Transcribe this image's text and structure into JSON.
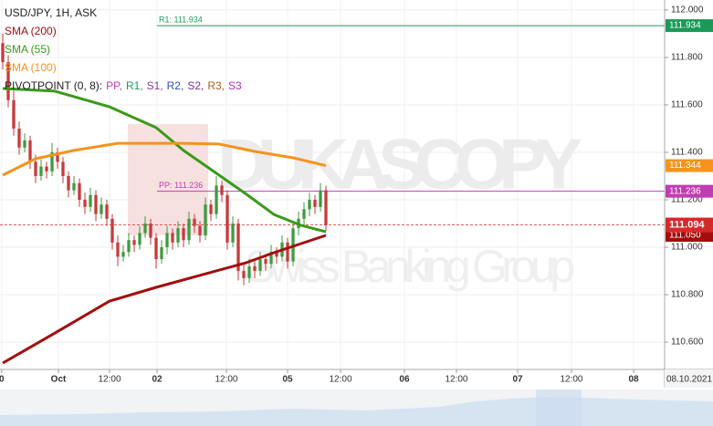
{
  "chart_data": {
    "type": "candlestick",
    "title": "USD/JPY, 1H, ASK",
    "xlim": [
      -0.5,
      120.83
    ],
    "ylim": [
      110.485,
      112.042
    ],
    "xticks": [
      {
        "value": -0.2,
        "label": "0"
      },
      {
        "value": 10.17,
        "label": "Oct"
      },
      {
        "value": 19.5,
        "label": "12:00"
      },
      {
        "value": 28.17,
        "label": "02"
      },
      {
        "value": 40.83,
        "label": "12:00"
      },
      {
        "value": 52,
        "label": "05"
      },
      {
        "value": 61.67,
        "label": "12:00"
      },
      {
        "value": 73.33,
        "label": "06"
      },
      {
        "value": 82.83,
        "label": "12:00"
      },
      {
        "value": 94,
        "label": "07"
      },
      {
        "value": 103.83,
        "label": "12:00"
      },
      {
        "value": 115.17,
        "label": "08"
      }
    ],
    "date_stamp": "08.10.2021",
    "yticks": [
      {
        "value": 110.6,
        "label": "110.600"
      },
      {
        "value": 110.8,
        "label": "110.800"
      },
      {
        "value": 111,
        "label": "111.000"
      },
      {
        "value": 111.2,
        "label": "111.200"
      },
      {
        "value": 111.4,
        "label": "111.400"
      },
      {
        "value": 111.6,
        "label": "111.600"
      },
      {
        "value": 111.8,
        "label": "111.800"
      },
      {
        "value": 112,
        "label": "112.000"
      }
    ],
    "grid": true,
    "up_color": "#3f9b3f",
    "down_color": "#c63b3b",
    "x": [
      0,
      1,
      2,
      3,
      4,
      5,
      6,
      7,
      8,
      9,
      10,
      11,
      12,
      13,
      14,
      15,
      16,
      17,
      18,
      19,
      20,
      21,
      22,
      23,
      24,
      25,
      26,
      27,
      28,
      29,
      30,
      31,
      32,
      33,
      34,
      35,
      36,
      37,
      38,
      39,
      40,
      41,
      42,
      43,
      44,
      45,
      46,
      47,
      48,
      49,
      50,
      51,
      52,
      53,
      54,
      55,
      56,
      57,
      58,
      59
    ],
    "open": [
      111.86,
      111.78,
      111.62,
      111.5,
      111.42,
      111.45,
      111.36,
      111.3,
      111.34,
      111.32,
      111.4,
      111.36,
      111.3,
      111.24,
      111.27,
      111.2,
      111.17,
      111.22,
      111.14,
      111.18,
      111.12,
      111.02,
      110.96,
      110.98,
      111.03,
      111.01,
      111.06,
      111.1,
      111.04,
      110.95,
      111.0,
      111.06,
      111.02,
      111.08,
      111.03,
      111.12,
      111.09,
      111.05,
      111.18,
      111.14,
      111.26,
      111.22,
      111.02,
      111.1,
      110.9,
      110.87,
      110.92,
      110.9,
      110.95,
      110.93,
      110.98,
      110.96,
      111.02,
      110.94,
      111.08,
      111.12,
      111.16,
      111.2,
      111.17,
      111.24
    ],
    "high": [
      111.9,
      111.81,
      111.66,
      111.53,
      111.48,
      111.47,
      111.39,
      111.37,
      111.36,
      111.44,
      111.42,
      111.38,
      111.32,
      111.3,
      111.29,
      111.23,
      111.25,
      111.24,
      111.21,
      111.2,
      111.14,
      111.05,
      111.01,
      111.06,
      111.05,
      111.09,
      111.13,
      111.12,
      111.06,
      111.03,
      111.09,
      111.08,
      111.11,
      111.1,
      111.15,
      111.14,
      111.11,
      111.21,
      111.2,
      111.3,
      111.28,
      111.24,
      111.13,
      111.12,
      110.93,
      110.95,
      110.94,
      110.98,
      110.97,
      111.01,
      111.0,
      111.05,
      111.04,
      111.1,
      111.15,
      111.19,
      111.23,
      111.22,
      111.27,
      111.26
    ],
    "low": [
      111.75,
      111.59,
      111.47,
      111.39,
      111.4,
      111.33,
      111.27,
      111.28,
      111.29,
      111.3,
      111.33,
      111.27,
      111.21,
      111.22,
      111.17,
      111.14,
      111.15,
      111.11,
      111.12,
      111.09,
      110.99,
      110.92,
      110.94,
      110.96,
      110.98,
      110.99,
      111.04,
      111.01,
      110.91,
      110.93,
      110.97,
      110.99,
      111.0,
      111.0,
      111.01,
      111.06,
      111.02,
      111.03,
      111.11,
      111.12,
      111.19,
      110.99,
      111.0,
      110.86,
      110.84,
      110.85,
      110.87,
      110.88,
      110.9,
      110.91,
      110.93,
      110.94,
      110.91,
      110.92,
      111.05,
      111.09,
      111.13,
      111.14,
      111.15,
      111.07
    ],
    "close": [
      111.78,
      111.62,
      111.5,
      111.42,
      111.45,
      111.36,
      111.3,
      111.34,
      111.32,
      111.4,
      111.36,
      111.3,
      111.24,
      111.27,
      111.2,
      111.17,
      111.22,
      111.14,
      111.18,
      111.12,
      111.02,
      110.96,
      110.98,
      111.03,
      111.01,
      111.06,
      111.1,
      111.04,
      110.95,
      111.0,
      111.06,
      111.02,
      111.08,
      111.03,
      111.12,
      111.09,
      111.05,
      111.18,
      111.14,
      111.26,
      111.22,
      111.02,
      111.1,
      110.9,
      110.87,
      110.92,
      110.9,
      110.95,
      110.93,
      110.98,
      110.96,
      111.02,
      110.94,
      111.08,
      111.12,
      111.16,
      111.2,
      111.17,
      111.24,
      111.094
    ],
    "current_price": {
      "value": 111.094,
      "label": "111.094",
      "color": "#d42a2a"
    },
    "series": [
      {
        "name": "SMA (200)",
        "color": "#a30d0d",
        "x": [
          0,
          9.5,
          19.5,
          28,
          44.5,
          49.5,
          59
        ],
        "values": [
          110.512,
          110.638,
          110.773,
          110.831,
          110.935,
          110.977,
          111.05
        ],
        "value_label": "111.050"
      },
      {
        "name": "SMA (55)",
        "color": "#3a9a1a",
        "x": [
          0,
          9.5,
          19.5,
          28,
          33,
          39.5,
          44.5,
          49.5,
          54.5,
          59
        ],
        "values": [
          111.669,
          111.658,
          111.592,
          111.504,
          111.408,
          111.304,
          111.223,
          111.138,
          111.092,
          111.065
        ]
      },
      {
        "name": "SMA (100)",
        "color": "#f5931e",
        "x": [
          0,
          6,
          13,
          21,
          33,
          39.5,
          46,
          53,
          59
        ],
        "values": [
          111.304,
          111.373,
          111.408,
          111.438,
          111.438,
          111.435,
          111.404,
          111.377,
          111.344
        ],
        "value_label": "111.344"
      }
    ],
    "pivot_title": "PIVOTPOINT (0, 8):",
    "pivot_legend": [
      {
        "name": "PP,",
        "color": "#c23cb2"
      },
      {
        "name": "R1,",
        "color": "#1a9a5a"
      },
      {
        "name": "S1,",
        "color": "#8a3aa0"
      },
      {
        "name": "R2,",
        "color": "#3050c0"
      },
      {
        "name": "S2,",
        "color": "#7a30a0"
      },
      {
        "name": "R3,",
        "color": "#b06020"
      },
      {
        "name": "S3",
        "color": "#b030c0"
      }
    ],
    "pivots": [
      {
        "value": 111.934,
        "label": "R1: 111.934",
        "tag": "111.934",
        "color": "#1a9a5a",
        "start": 28.17
      },
      {
        "value": 111.236,
        "label": "PP: 111.236",
        "tag": "111.236",
        "color": "#c23cb2",
        "start": 28.17
      }
    ],
    "watermark": [
      "DUKASCOPY",
      "Swiss Banking Group"
    ]
  }
}
